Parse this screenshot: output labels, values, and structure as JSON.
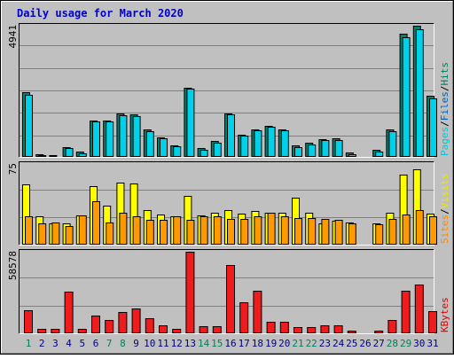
{
  "chart_data": {
    "type": "bar",
    "title": "Daily usage for March 2020",
    "days": [
      "1",
      "2",
      "3",
      "4",
      "5",
      "6",
      "7",
      "8",
      "9",
      "10",
      "11",
      "12",
      "13",
      "14",
      "15",
      "16",
      "17",
      "18",
      "19",
      "20",
      "21",
      "22",
      "23",
      "24",
      "25",
      "26",
      "27",
      "28",
      "29",
      "30",
      "31"
    ],
    "weekend_days": [
      "1",
      "7",
      "8",
      "14",
      "15",
      "21",
      "22",
      "28",
      "29"
    ],
    "panels": [
      {
        "id": "hits-files-pages",
        "axis_max_label": "4941",
        "ymax": 4941,
        "legend": [
          {
            "text": "Pages",
            "color": "#00c8d8"
          },
          {
            "text": "Files",
            "color": "#0060c0"
          },
          {
            "text": "Hits",
            "color": "#008060"
          }
        ],
        "series": [
          {
            "name": "Hits",
            "color": "#00826e",
            "values": [
              2440,
              100,
              80,
              380,
              200,
              1380,
              1380,
              1640,
              1600,
              1030,
              750,
              450,
              2620,
              320,
              590,
              1650,
              850,
              1040,
              1180,
              1040,
              430,
              520,
              680,
              700,
              160,
              0,
              260,
              1030,
              4630,
              4940,
              2300
            ]
          },
          {
            "name": "Pages",
            "color": "#00d0e8",
            "values": [
              2340,
              60,
              50,
              330,
              140,
              1320,
              1320,
              1580,
              1550,
              970,
              690,
              400,
              2560,
              260,
              540,
              1590,
              800,
              990,
              1120,
              990,
              380,
              470,
              640,
              650,
              100,
              0,
              200,
              980,
              4500,
              4800,
              2200
            ]
          }
        ]
      },
      {
        "id": "visits-sites",
        "axis_max_label": "75",
        "ymax": 75,
        "legend": [
          {
            "text": "Sites",
            "color": "#ff8800"
          },
          {
            "text": "Visits",
            "color": "#e8e800"
          }
        ],
        "series": [
          {
            "name": "Visits",
            "color": "#ffff00",
            "values": [
              56,
              26,
              20,
              20,
              27,
              54,
              36,
              58,
              57,
              32,
              28,
              26,
              45,
              27,
              30,
              32,
              29,
              31,
              30,
              30,
              44,
              30,
              20,
              22,
              21,
              0,
              20,
              30,
              65,
              70,
              29
            ]
          },
          {
            "name": "Sites",
            "color": "#ff9900",
            "values": [
              26,
              20,
              21,
              17,
              27,
              40,
              21,
              30,
              26,
              23,
              23,
              26,
              23,
              26,
              26,
              24,
              24,
              26,
              30,
              26,
              25,
              25,
              24,
              23,
              20,
              0,
              19,
              24,
              28,
              32,
              26
            ]
          }
        ]
      },
      {
        "id": "kbytes",
        "axis_max_label": "58578",
        "ymax": 58578,
        "legend": [
          {
            "text": "KBytes",
            "color": "#e00000"
          }
        ],
        "series": [
          {
            "name": "KBytes",
            "color": "#ee1c1c",
            "values": [
              16800,
              3000,
              3000,
              29800,
              3000,
              13000,
              9800,
              15000,
              17800,
              11000,
              5500,
              3000,
              58500,
              5000,
              5000,
              48900,
              22000,
              30600,
              8500,
              8000,
              4500,
              4500,
              6000,
              6000,
              2000,
              0,
              2000,
              9500,
              30600,
              35000,
              16000
            ]
          }
        ]
      }
    ]
  }
}
